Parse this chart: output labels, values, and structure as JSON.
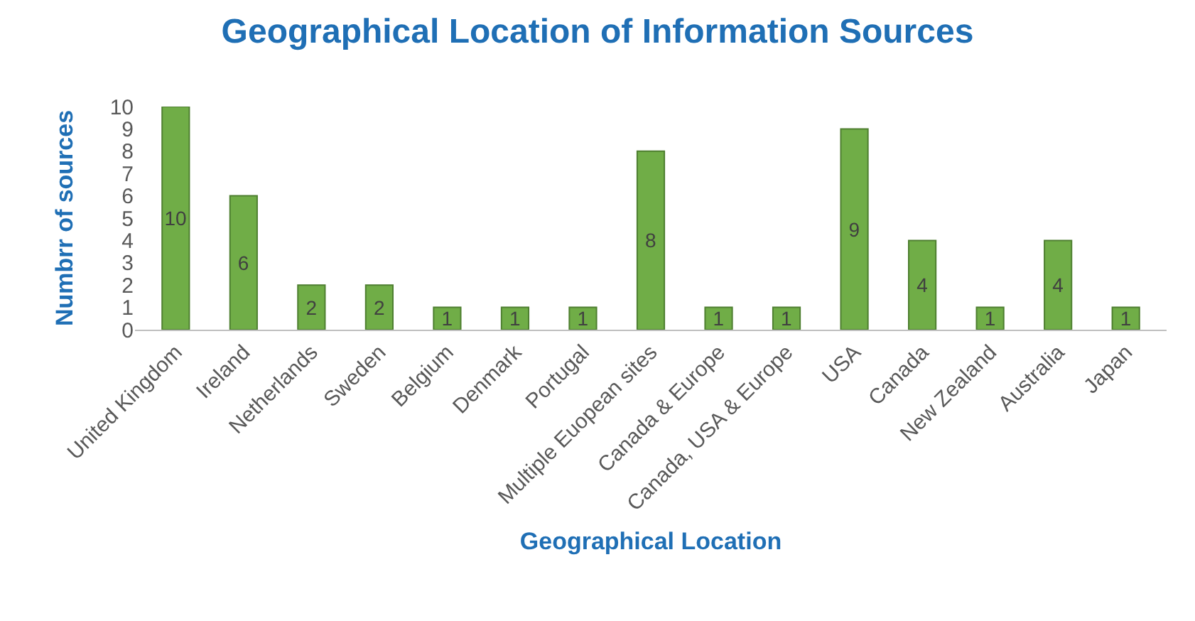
{
  "chart_data": {
    "type": "bar",
    "title": "Geographical Location of Information Sources",
    "xlabel": "Geographical Location",
    "ylabel": "Numbrr of sources",
    "categories": [
      "United Kingdom",
      "Ireland",
      "Netherlands",
      "Sweden",
      "Belgium",
      "Denmark",
      "Portugal",
      "Multiple Euopean sites",
      "Canada & Europe",
      "Canada, USA & Europe",
      "USA",
      "Canada",
      "New Zealand",
      "Australia",
      "Japan"
    ],
    "values": [
      10,
      6,
      2,
      2,
      1,
      1,
      1,
      8,
      1,
      1,
      9,
      4,
      1,
      4,
      1
    ],
    "color": "#70ad47",
    "ylim": [
      0,
      10
    ],
    "yticks": [
      0,
      1,
      2,
      3,
      4,
      5,
      6,
      7,
      8,
      9,
      10
    ],
    "grid": false,
    "data_labels": true
  }
}
